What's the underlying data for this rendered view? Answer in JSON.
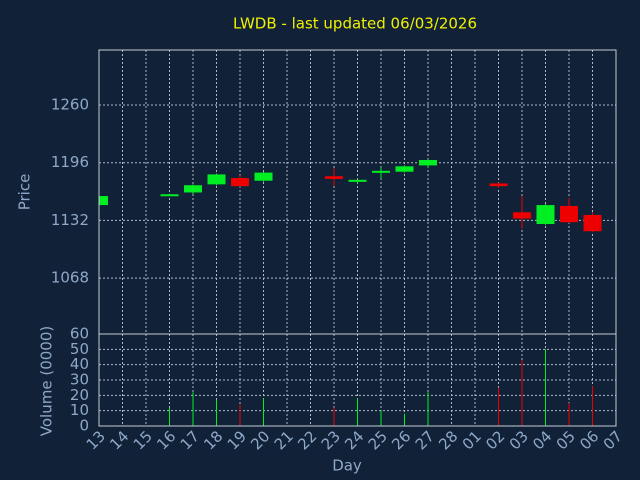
{
  "chart_data": {
    "type": "candlestick",
    "title": "LWDB - last updated 06/03/2026",
    "ylabel": "Price",
    "y2label": "Volume (0000)",
    "xlabel": "Day",
    "categories": [
      "13",
      "14",
      "15",
      "16",
      "17",
      "18",
      "19",
      "20",
      "21",
      "22",
      "23",
      "24",
      "25",
      "26",
      "27",
      "28",
      "01",
      "02",
      "03",
      "04",
      "05",
      "06",
      "07"
    ],
    "open": [
      1149,
      null,
      null,
      1160,
      1163,
      1172,
      1179,
      1176,
      null,
      null,
      1181,
      1175,
      1186,
      1186,
      1193,
      null,
      null,
      1173,
      1141,
      1128,
      1148,
      1138,
      null
    ],
    "high": [
      1160,
      null,
      null,
      1161.5,
      1172,
      1184,
      1182,
      1186,
      null,
      null,
      1190,
      1177,
      1191,
      1193,
      1200,
      null,
      null,
      1174,
      1159,
      1150,
      1157,
      1141,
      null
    ],
    "low": [
      1148,
      null,
      null,
      1160,
      1161,
      1171,
      1169,
      1175,
      null,
      null,
      1170,
      1173,
      1178,
      1185,
      1190,
      null,
      null,
      1168,
      1123,
      1127,
      1129,
      1119,
      null
    ],
    "close": [
      1159,
      null,
      null,
      1161,
      1171,
      1183,
      1170,
      1185,
      null,
      null,
      1178,
      1177,
      1187,
      1192,
      1199,
      null,
      null,
      1170,
      1134,
      1149,
      1130,
      1120,
      null
    ],
    "volume": [
      null,
      null,
      null,
      12,
      22,
      17,
      14,
      18,
      null,
      null,
      12,
      18,
      10,
      8,
      22,
      null,
      null,
      25,
      43,
      50,
      15,
      26,
      null
    ],
    "up_color": "#00ee22",
    "down_color": "#ee0000",
    "ylim": [
      1006,
      1321
    ],
    "yticks": [
      1068,
      1132,
      1196,
      1260
    ],
    "y2lim": [
      0,
      60
    ],
    "y2ticks": [
      0,
      10,
      20,
      30,
      40,
      50,
      60
    ],
    "grid": true
  }
}
